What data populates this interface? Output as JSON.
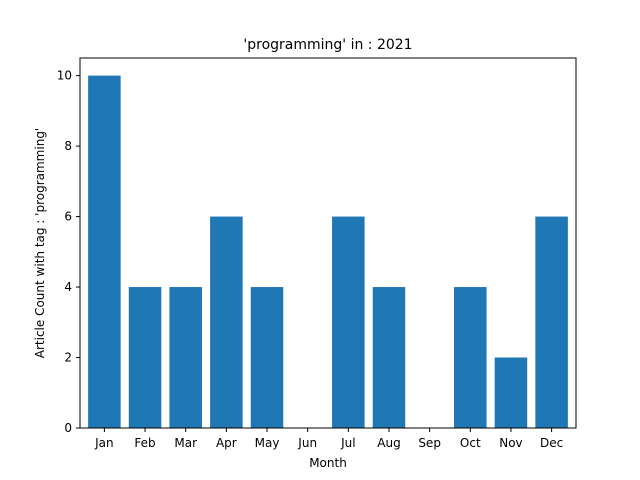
{
  "chart_data": {
    "type": "bar",
    "title": "'programming' in : 2021",
    "xlabel": "Month",
    "ylabel": "Article Count with tag : 'programming'",
    "categories": [
      "Jan",
      "Feb",
      "Mar",
      "Apr",
      "May",
      "Jun",
      "Jul",
      "Aug",
      "Sep",
      "Oct",
      "Nov",
      "Dec"
    ],
    "values": [
      10,
      4,
      4,
      6,
      4,
      0,
      6,
      4,
      0,
      4,
      2,
      6
    ],
    "ylim": [
      0,
      10.5
    ],
    "yticks": [
      0,
      2,
      4,
      6,
      8,
      10
    ],
    "grid": false,
    "bar_color": "#1f77b4"
  }
}
